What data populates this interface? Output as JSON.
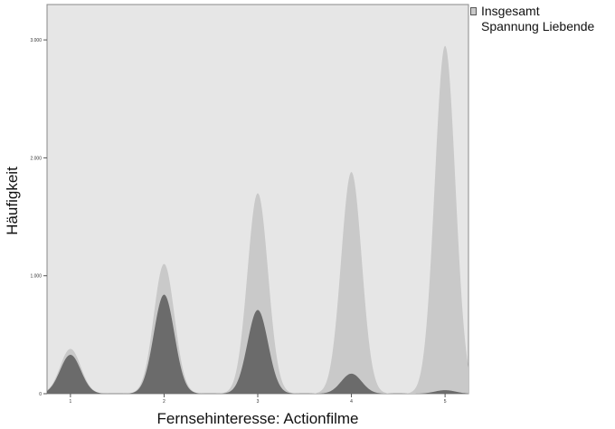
{
  "chart_data": {
    "type": "area",
    "title": "",
    "xlabel": "Fernsehinteresse: Actionfilme",
    "ylabel": "Häufigkeit",
    "categories": [
      1,
      2,
      3,
      4,
      5
    ],
    "yticks": [
      "0",
      "1.000",
      "2.000",
      "3.000"
    ],
    "ylim": [
      0,
      3300
    ],
    "xlim": [
      0.75,
      5.25
    ],
    "grid": false,
    "legend_position": "top-right",
    "series": [
      {
        "name": "Insgesamt",
        "values": [
          380,
          1100,
          1700,
          1880,
          2950
        ],
        "color": "#c9c9c9"
      },
      {
        "name": "Spannung Liebende",
        "values": [
          330,
          840,
          710,
          170,
          30
        ],
        "color": "#6b6b6b"
      }
    ],
    "plot_background": "#e6e6e6"
  }
}
